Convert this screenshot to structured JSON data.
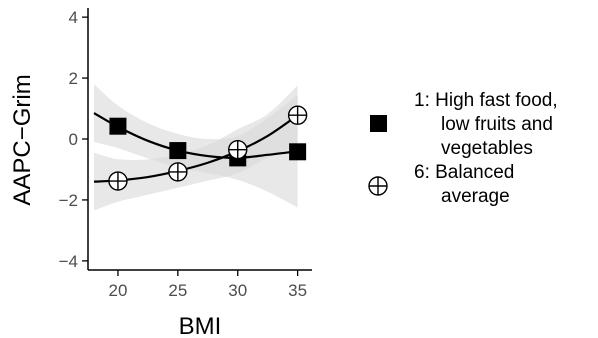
{
  "chart_data": {
    "type": "scatter",
    "xlabel": "BMI",
    "ylabel": "AAPC−Grim",
    "xlim": [
      17.5,
      36.2
    ],
    "ylim": [
      -4.3,
      4.3
    ],
    "x_ticks": [
      20,
      25,
      30,
      35
    ],
    "x_tick_labels": [
      "20",
      "25",
      "30",
      "35"
    ],
    "y_ticks": [
      -4,
      -2,
      0,
      2,
      4
    ],
    "y_tick_labels": [
      "−4",
      "−2",
      "0",
      "2",
      "4"
    ],
    "grid": false,
    "legend_position": "right",
    "series": [
      {
        "name": "1: High fast food, low fruits and vegetables",
        "legend_lines": [
          "1: High fast food,",
          "low fruits and",
          "vegetables"
        ],
        "marker": "filled-square",
        "x": [
          20,
          25,
          30,
          35
        ],
        "y": [
          0.42,
          -0.38,
          -0.62,
          -0.42
        ],
        "fit": {
          "x": [
            18,
            20,
            22.5,
            25,
            27.5,
            30,
            32.5,
            35
          ],
          "y": [
            0.85,
            0.4,
            -0.06,
            -0.38,
            -0.56,
            -0.62,
            -0.52,
            -0.4
          ],
          "lower": [
            -0.1,
            -0.3,
            -0.64,
            -0.93,
            -1.12,
            -1.34,
            -1.73,
            -2.25
          ],
          "upper": [
            1.8,
            1.1,
            0.52,
            0.17,
            0.0,
            0.1,
            0.69,
            1.45
          ]
        }
      },
      {
        "name": "6: Balanced average",
        "legend_lines": [
          "6: Balanced",
          "average"
        ],
        "marker": "circle-plus",
        "x": [
          20,
          25,
          30,
          35
        ],
        "y": [
          -1.38,
          -1.08,
          -0.35,
          0.78
        ],
        "fit": {
          "x": [
            18,
            20,
            22.5,
            25,
            27.5,
            30,
            32.5,
            35
          ],
          "y": [
            -1.4,
            -1.36,
            -1.25,
            -1.05,
            -0.78,
            -0.4,
            0.1,
            0.78
          ],
          "lower": [
            -2.35,
            -2.06,
            -1.83,
            -1.6,
            -1.37,
            -1.12,
            -0.62,
            -0.2
          ],
          "upper": [
            -0.45,
            -0.66,
            -0.67,
            -0.5,
            -0.2,
            0.32,
            0.82,
            1.76
          ]
        }
      }
    ]
  }
}
